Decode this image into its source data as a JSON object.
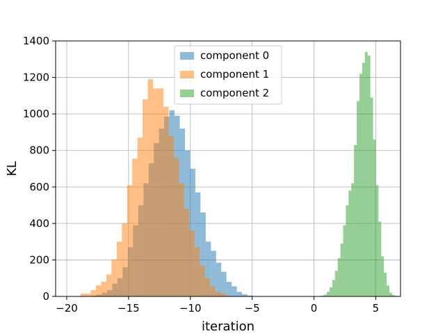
{
  "chart_data": {
    "type": "histogram",
    "title": "",
    "xlabel": "iteration",
    "ylabel": "KL",
    "xlim": [
      -20.9,
      7.0
    ],
    "ylim": [
      0,
      1400
    ],
    "xticks": [
      -20,
      -15,
      -10,
      -5,
      0,
      5
    ],
    "xtick_labels": [
      "−20",
      "−15",
      "−10",
      "−5",
      "0",
      "5"
    ],
    "yticks": [
      0,
      200,
      400,
      600,
      800,
      1000,
      1200,
      1400
    ],
    "ytick_labels": [
      "0",
      "200",
      "400",
      "600",
      "800",
      "1000",
      "1200",
      "1400"
    ],
    "grid": true,
    "legend_position": "top-center",
    "alpha": 0.5,
    "series": [
      {
        "name": "component 0",
        "color": "#1f77b4",
        "bin_start": -18.0,
        "bin_width": 0.42,
        "counts": [
          5,
          10,
          20,
          35,
          70,
          100,
          160,
          270,
          390,
          500,
          620,
          730,
          840,
          920,
          985,
          1020,
          990,
          920,
          800,
          700,
          570,
          460,
          300,
          250,
          185,
          135,
          80,
          55,
          25,
          12,
          5
        ]
      },
      {
        "name": "component 1",
        "color": "#ff7f0e",
        "bin_start": -18.9,
        "bin_width": 0.42,
        "counts": [
          15,
          15,
          35,
          60,
          80,
          120,
          200,
          300,
          400,
          610,
          755,
          870,
          1080,
          1190,
          1140,
          1140,
          1040,
          880,
          760,
          620,
          480,
          360,
          270,
          170,
          100,
          55,
          25,
          15,
          5,
          2
        ]
      },
      {
        "name": "component 2",
        "color": "#2ca02c",
        "bin_start": 0.6,
        "bin_width": 0.22,
        "counts": [
          5,
          10,
          25,
          50,
          90,
          140,
          210,
          290,
          390,
          500,
          580,
          620,
          830,
          1070,
          1220,
          1280,
          1340,
          1320,
          1090,
          860,
          610,
          410,
          220,
          130,
          60,
          20,
          8,
          3
        ]
      }
    ]
  }
}
